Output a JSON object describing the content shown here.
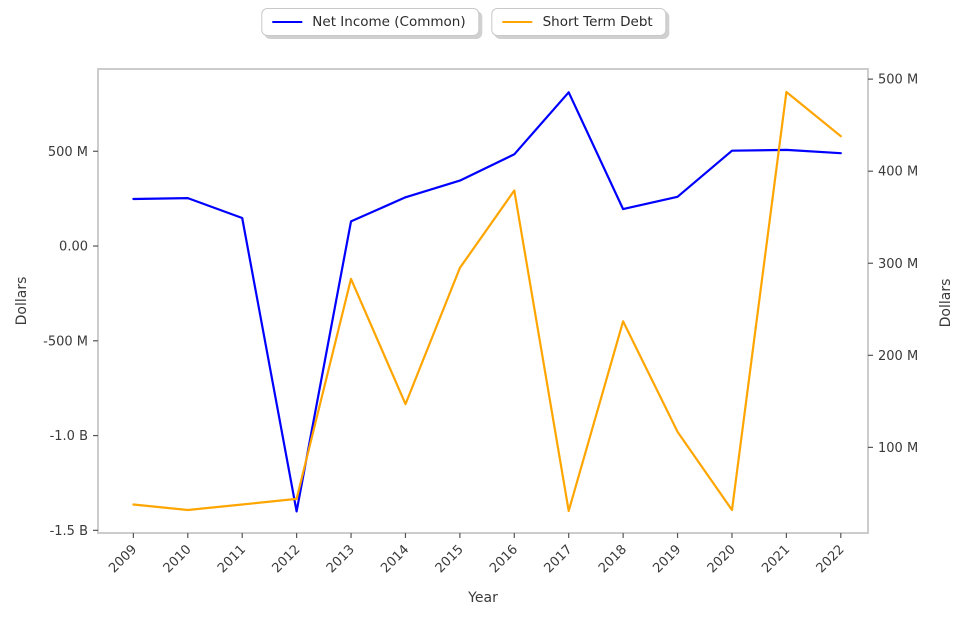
{
  "figure": {
    "background": "#ffffff",
    "plot_border_color": "#cccccc",
    "tick_text_color": "#3a3a3a",
    "tick_mark_color": "#555555"
  },
  "legend": {
    "position": "upper center",
    "items": [
      {
        "label": "Net Income (Common)",
        "color": "#0000ff"
      },
      {
        "label": "Short Term Debt",
        "color": "#ffa500"
      }
    ]
  },
  "chart_data": {
    "type": "line",
    "title": "",
    "xlabel": "Year",
    "ylabel_left": "Dollars",
    "ylabel_right": "Dollars",
    "grid": false,
    "legend_position": "top-center",
    "x": [
      2009,
      2010,
      2011,
      2012,
      2013,
      2014,
      2015,
      2016,
      2017,
      2018,
      2019,
      2020,
      2021,
      2022
    ],
    "series": [
      {
        "name": "Net Income (Common)",
        "axis": "left",
        "color": "#0000ff",
        "values": [
          248000000,
          253000000,
          148000000,
          -1400000000,
          130000000,
          257000000,
          345000000,
          484000000,
          811000000,
          195000000,
          260000000,
          503000000,
          507000000,
          490000000
        ]
      },
      {
        "name": "Short Term Debt",
        "axis": "right",
        "color": "#ffa500",
        "values": [
          38000000,
          32000000,
          38000000,
          44000000,
          283000000,
          147000000,
          295000000,
          379000000,
          31000000,
          237000000,
          117000000,
          32000000,
          486000000,
          438000000
        ]
      }
    ],
    "x_axis": {
      "lim": [
        2008.35,
        2022.5
      ],
      "ticks": [
        {
          "v": 2009,
          "label": "2009"
        },
        {
          "v": 2010,
          "label": "2010"
        },
        {
          "v": 2011,
          "label": "2011"
        },
        {
          "v": 2012,
          "label": "2012"
        },
        {
          "v": 2013,
          "label": "2013"
        },
        {
          "v": 2014,
          "label": "2014"
        },
        {
          "v": 2015,
          "label": "2015"
        },
        {
          "v": 2016,
          "label": "2016"
        },
        {
          "v": 2017,
          "label": "2017"
        },
        {
          "v": 2018,
          "label": "2018"
        },
        {
          "v": 2019,
          "label": "2019"
        },
        {
          "v": 2020,
          "label": "2020"
        },
        {
          "v": 2021,
          "label": "2021"
        },
        {
          "v": 2022,
          "label": "2022"
        }
      ]
    },
    "left_axis": {
      "lim": [
        -1514000000,
        934000000
      ],
      "ticks": [
        {
          "v": 500000000,
          "label": "500 M"
        },
        {
          "v": 0,
          "label": "0.00"
        },
        {
          "v": -500000000,
          "label": "-500 M"
        },
        {
          "v": -1000000000,
          "label": "-1.0 B"
        },
        {
          "v": -1500000000,
          "label": "-1.5 B"
        }
      ]
    },
    "right_axis": {
      "lim": [
        7000000,
        511000000
      ],
      "ticks": [
        {
          "v": 500000000,
          "label": "500 M"
        },
        {
          "v": 400000000,
          "label": "400 M"
        },
        {
          "v": 300000000,
          "label": "300 M"
        },
        {
          "v": 200000000,
          "label": "200 M"
        },
        {
          "v": 100000000,
          "label": "100 M"
        }
      ]
    }
  }
}
